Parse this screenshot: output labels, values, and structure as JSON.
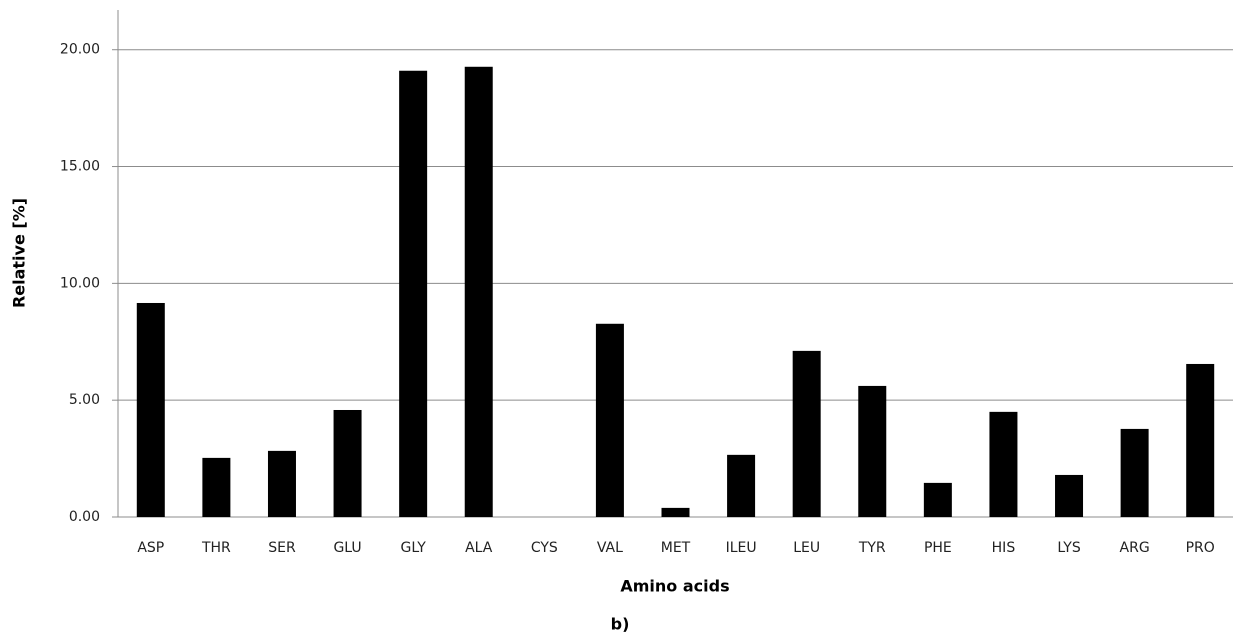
{
  "chart_data": {
    "type": "bar",
    "x_label": "Amino acids",
    "y_label": "Relative [%]",
    "caption": "b)",
    "categories": [
      "ASP",
      "THR",
      "SER",
      "GLU",
      "GLY",
      "ALA",
      "CYS",
      "VAL",
      "MET",
      "ILEU",
      "LEU",
      "TYR",
      "PHE",
      "HIS",
      "LYS",
      "ARG",
      "PRO"
    ],
    "values": [
      9.16,
      2.53,
      2.83,
      4.58,
      19.1,
      19.27,
      0,
      8.27,
      0.39,
      2.66,
      7.11,
      5.61,
      1.46,
      4.5,
      1.8,
      3.77,
      6.55
    ],
    "color": "#000000",
    "ylim": [
      0,
      21.7
    ],
    "yticks": [
      {
        "value": 0,
        "label": "0.00"
      },
      {
        "value": 5,
        "label": "5.00"
      },
      {
        "value": 10,
        "label": "10.00"
      },
      {
        "value": 15,
        "label": "15.00"
      },
      {
        "value": 20,
        "label": "20.00"
      }
    ],
    "grid": true
  }
}
